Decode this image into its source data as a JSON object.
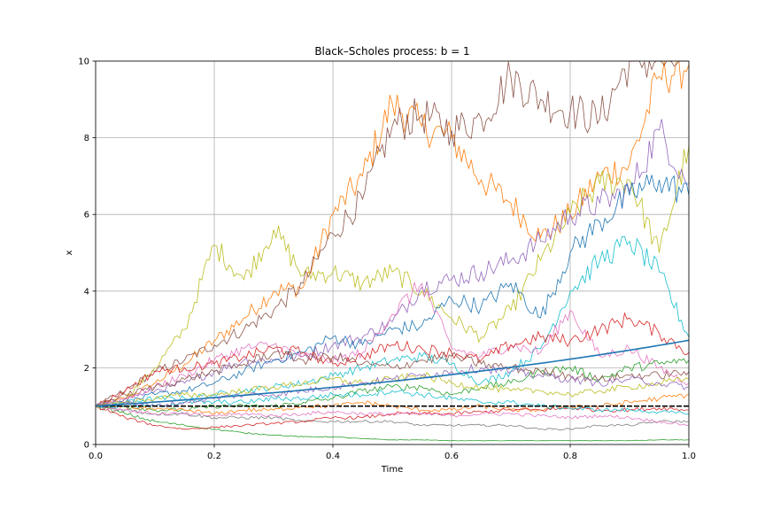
{
  "chart_data": {
    "type": "line",
    "title": "Black–Scholes process: b = 1",
    "xlabel": "Time",
    "ylabel": "x",
    "xlim": [
      0,
      1
    ],
    "ylim": [
      0,
      10
    ],
    "xticks": [
      0.0,
      0.2,
      0.4,
      0.6,
      0.8,
      1.0
    ],
    "xtick_labels": [
      "0.0",
      "0.2",
      "0.4",
      "0.6",
      "0.8",
      "1.0"
    ],
    "yticks": [
      0,
      2,
      4,
      6,
      8,
      10
    ],
    "ytick_labels": [
      "0",
      "2",
      "4",
      "6",
      "8",
      "10"
    ],
    "grid": true,
    "legend": "none",
    "reference_line": {
      "y": 1,
      "color": "#000000",
      "style": "dashed"
    },
    "expectation_curve": {
      "formula": "exp(b*t)",
      "b": 1,
      "color": "#1f77b4"
    },
    "paths": [
      {
        "color": "#ff7f0e",
        "x": [
          0,
          0.05,
          0.1,
          0.15,
          0.2,
          0.25,
          0.3,
          0.35,
          0.4,
          0.45,
          0.5,
          0.55,
          0.6,
          0.65,
          0.7,
          0.75,
          0.8,
          0.85,
          0.9,
          0.95,
          1.0
        ],
        "values": [
          1.0,
          1.2,
          1.6,
          2.1,
          2.7,
          3.3,
          4.0,
          4.1,
          6.0,
          7.0,
          8.9,
          8.3,
          8.0,
          6.9,
          6.3,
          5.4,
          6.0,
          7.0,
          7.3,
          9.6,
          9.9
        ]
      },
      {
        "color": "#8c564b",
        "x": [
          0,
          0.05,
          0.1,
          0.15,
          0.2,
          0.25,
          0.3,
          0.35,
          0.4,
          0.45,
          0.5,
          0.55,
          0.6,
          0.65,
          0.7,
          0.75,
          0.8,
          0.85,
          0.9,
          0.95,
          1.0
        ],
        "values": [
          1.0,
          1.4,
          1.9,
          2.2,
          2.6,
          3.0,
          3.5,
          4.2,
          5.5,
          6.4,
          8.3,
          8.6,
          8.2,
          8.5,
          9.6,
          9.0,
          8.7,
          8.5,
          10.0,
          10.0,
          10.0
        ]
      },
      {
        "color": "#bcbd22",
        "x": [
          0,
          0.05,
          0.1,
          0.15,
          0.2,
          0.25,
          0.3,
          0.35,
          0.4,
          0.45,
          0.5,
          0.55,
          0.6,
          0.65,
          0.7,
          0.75,
          0.8,
          0.85,
          0.9,
          0.95,
          1.0
        ],
        "values": [
          1.0,
          1.2,
          2.0,
          3.0,
          5.2,
          4.3,
          5.6,
          4.4,
          4.5,
          4.2,
          4.5,
          4.0,
          3.3,
          2.8,
          3.5,
          4.8,
          6.0,
          6.8,
          6.9,
          5.0,
          7.8
        ]
      },
      {
        "color": "#9467bd",
        "x": [
          0,
          0.05,
          0.1,
          0.15,
          0.2,
          0.25,
          0.3,
          0.35,
          0.4,
          0.45,
          0.5,
          0.55,
          0.6,
          0.65,
          0.7,
          0.75,
          0.8,
          0.85,
          0.9,
          0.95,
          1.0
        ],
        "values": [
          1.0,
          1.2,
          1.4,
          1.6,
          1.9,
          2.2,
          2.2,
          2.3,
          2.6,
          2.8,
          3.2,
          4.1,
          4.3,
          4.5,
          4.8,
          5.3,
          6.0,
          6.3,
          6.6,
          8.2,
          6.8
        ]
      },
      {
        "color": "#1f77b4",
        "x": [
          0,
          0.05,
          0.1,
          0.15,
          0.2,
          0.25,
          0.3,
          0.35,
          0.4,
          0.45,
          0.5,
          0.55,
          0.6,
          0.65,
          0.7,
          0.75,
          0.8,
          0.85,
          0.9,
          0.95,
          1.0
        ],
        "values": [
          1.0,
          1.1,
          1.3,
          1.4,
          1.6,
          1.9,
          2.2,
          2.4,
          2.8,
          2.6,
          3.0,
          3.1,
          3.8,
          3.6,
          4.2,
          3.3,
          5.0,
          5.8,
          6.5,
          6.9,
          6.5
        ]
      },
      {
        "color": "#17becf",
        "x": [
          0,
          0.05,
          0.1,
          0.15,
          0.2,
          0.25,
          0.3,
          0.35,
          0.4,
          0.45,
          0.5,
          0.55,
          0.6,
          0.65,
          0.7,
          0.75,
          0.8,
          0.85,
          0.9,
          0.95,
          1.0
        ],
        "values": [
          1.0,
          1.1,
          1.2,
          1.2,
          1.3,
          1.4,
          1.5,
          1.6,
          1.8,
          2.0,
          2.2,
          2.3,
          2.1,
          1.6,
          1.9,
          2.5,
          4.0,
          4.8,
          5.3,
          4.5,
          2.8
        ]
      },
      {
        "color": "#e377c2",
        "x": [
          0,
          0.05,
          0.1,
          0.15,
          0.2,
          0.25,
          0.3,
          0.35,
          0.4,
          0.45,
          0.5,
          0.55,
          0.6,
          0.65,
          0.7,
          0.75,
          0.8,
          0.85,
          0.9,
          0.95,
          1.0
        ],
        "values": [
          1.0,
          1.2,
          1.5,
          1.8,
          2.2,
          2.5,
          2.6,
          2.3,
          2.2,
          2.4,
          3.4,
          4.2,
          2.5,
          2.3,
          2.6,
          2.4,
          3.5,
          2.3,
          2.5,
          2.0,
          1.6
        ]
      },
      {
        "color": "#d62728",
        "x": [
          0,
          0.05,
          0.1,
          0.15,
          0.2,
          0.25,
          0.3,
          0.35,
          0.4,
          0.45,
          0.5,
          0.55,
          0.6,
          0.65,
          0.7,
          0.75,
          0.8,
          0.85,
          0.9,
          0.95,
          1.0
        ],
        "values": [
          1.0,
          1.4,
          1.9,
          2.0,
          2.1,
          2.3,
          2.5,
          2.4,
          2.1,
          2.3,
          2.6,
          2.5,
          2.4,
          2.2,
          2.6,
          2.8,
          2.7,
          3.0,
          3.3,
          2.9,
          2.4
        ]
      },
      {
        "color": "#2ca02c",
        "x": [
          0,
          0.05,
          0.1,
          0.15,
          0.2,
          0.25,
          0.3,
          0.35,
          0.4,
          0.45,
          0.5,
          0.55,
          0.6,
          0.65,
          0.7,
          0.75,
          0.8,
          0.85,
          0.9,
          0.95,
          1.0
        ],
        "values": [
          1.0,
          1.0,
          0.9,
          0.9,
          1.0,
          1.0,
          1.0,
          1.1,
          1.2,
          1.4,
          1.5,
          1.5,
          1.3,
          1.5,
          1.6,
          1.9,
          2.0,
          1.7,
          2.0,
          2.1,
          2.2
        ]
      },
      {
        "color": "#7f7f7f",
        "x": [
          0,
          0.05,
          0.1,
          0.15,
          0.2,
          0.25,
          0.3,
          0.35,
          0.4,
          0.45,
          0.5,
          0.55,
          0.6,
          0.65,
          0.7,
          0.75,
          0.8,
          0.85,
          0.9,
          0.95,
          1.0
        ],
        "values": [
          1.0,
          0.9,
          0.8,
          0.8,
          0.7,
          0.7,
          0.7,
          0.6,
          0.6,
          0.6,
          0.6,
          0.5,
          0.5,
          0.5,
          0.5,
          0.4,
          0.4,
          0.5,
          0.5,
          0.6,
          0.6
        ]
      },
      {
        "color": "#2ca02c",
        "x": [
          0,
          0.05,
          0.1,
          0.15,
          0.2,
          0.25,
          0.3,
          0.35,
          0.4,
          0.45,
          0.5,
          0.55,
          0.6,
          0.65,
          0.7,
          0.75,
          0.8,
          0.85,
          0.9,
          0.95,
          1.0
        ],
        "values": [
          1.0,
          0.8,
          0.6,
          0.5,
          0.4,
          0.3,
          0.25,
          0.2,
          0.2,
          0.15,
          0.12,
          0.12,
          0.1,
          0.1,
          0.1,
          0.1,
          0.1,
          0.1,
          0.1,
          0.12,
          0.12
        ]
      },
      {
        "color": "#ff7f0e",
        "x": [
          0,
          0.05,
          0.1,
          0.15,
          0.2,
          0.25,
          0.3,
          0.35,
          0.4,
          0.45,
          0.5,
          0.55,
          0.6,
          0.65,
          0.7,
          0.75,
          0.8,
          0.85,
          0.9,
          0.95,
          1.0
        ],
        "values": [
          1.0,
          1.0,
          0.9,
          0.9,
          0.8,
          0.9,
          0.9,
          1.0,
          1.0,
          1.1,
          1.0,
          0.9,
          0.9,
          1.0,
          0.9,
          0.9,
          1.0,
          1.0,
          1.1,
          1.2,
          1.3
        ]
      },
      {
        "color": "#d62728",
        "x": [
          0,
          0.05,
          0.1,
          0.15,
          0.2,
          0.25,
          0.3,
          0.35,
          0.4,
          0.45,
          0.5,
          0.55,
          0.6,
          0.65,
          0.7,
          0.75,
          0.8,
          0.85,
          0.9,
          0.95,
          1.0
        ],
        "values": [
          1.0,
          0.7,
          0.5,
          0.4,
          0.45,
          0.5,
          0.55,
          0.6,
          0.7,
          0.7,
          0.8,
          0.8,
          0.8,
          0.85,
          0.9,
          0.9,
          0.95,
          0.9,
          0.9,
          0.95,
          0.9
        ]
      },
      {
        "color": "#e377c2",
        "x": [
          0,
          0.05,
          0.1,
          0.15,
          0.2,
          0.25,
          0.3,
          0.35,
          0.4,
          0.45,
          0.5,
          0.55,
          0.6,
          0.65,
          0.7,
          0.75,
          0.8,
          0.85,
          0.9,
          0.95,
          1.0
        ],
        "values": [
          1.0,
          0.9,
          0.8,
          0.8,
          0.75,
          0.8,
          0.75,
          0.8,
          0.85,
          0.8,
          0.8,
          0.8,
          0.75,
          0.8,
          0.8,
          0.75,
          0.7,
          0.75,
          0.7,
          0.6,
          0.5
        ]
      },
      {
        "color": "#17becf",
        "x": [
          0,
          0.05,
          0.1,
          0.15,
          0.2,
          0.25,
          0.3,
          0.35,
          0.4,
          0.45,
          0.5,
          0.55,
          0.6,
          0.65,
          0.7,
          0.75,
          0.8,
          0.85,
          0.9,
          0.95,
          1.0
        ],
        "values": [
          1.0,
          1.0,
          1.0,
          1.1,
          1.1,
          1.1,
          1.2,
          1.2,
          1.3,
          1.3,
          1.4,
          1.3,
          1.2,
          1.1,
          1.1,
          1.0,
          0.95,
          0.9,
          0.9,
          0.85,
          0.8
        ]
      },
      {
        "color": "#bcbd22",
        "x": [
          0,
          0.05,
          0.1,
          0.15,
          0.2,
          0.25,
          0.3,
          0.35,
          0.4,
          0.45,
          0.5,
          0.55,
          0.6,
          0.65,
          0.7,
          0.75,
          0.8,
          0.85,
          0.9,
          0.95,
          1.0
        ],
        "values": [
          1.0,
          1.1,
          1.2,
          1.3,
          1.3,
          1.4,
          1.5,
          1.6,
          1.7,
          1.6,
          1.7,
          1.8,
          1.6,
          1.5,
          1.4,
          1.4,
          1.3,
          1.4,
          1.5,
          1.6,
          1.7
        ]
      },
      {
        "color": "#8c564b",
        "x": [
          0,
          0.05,
          0.1,
          0.15,
          0.2,
          0.25,
          0.3,
          0.35,
          0.4,
          0.45,
          0.5,
          0.55,
          0.6,
          0.65,
          0.7,
          0.75,
          0.8,
          0.85,
          0.9,
          0.95,
          1.0
        ],
        "values": [
          1.0,
          1.3,
          1.5,
          1.7,
          1.9,
          2.1,
          2.4,
          2.2,
          2.3,
          2.1,
          2.0,
          2.2,
          2.3,
          2.1,
          2.0,
          1.9,
          1.8,
          1.7,
          1.8,
          1.8,
          1.9
        ]
      },
      {
        "color": "#9467bd",
        "x": [
          0,
          0.05,
          0.1,
          0.15,
          0.2,
          0.25,
          0.3,
          0.35,
          0.4,
          0.45,
          0.5,
          0.55,
          0.6,
          0.65,
          0.7,
          0.75,
          0.8,
          0.85,
          0.9,
          0.95,
          1.0
        ],
        "values": [
          1.0,
          1.1,
          1.0,
          1.1,
          1.2,
          1.3,
          1.3,
          1.4,
          1.5,
          1.6,
          1.7,
          1.8,
          1.9,
          2.0,
          1.9,
          1.8,
          1.7,
          1.6,
          1.7,
          1.6,
          1.5
        ]
      }
    ]
  }
}
